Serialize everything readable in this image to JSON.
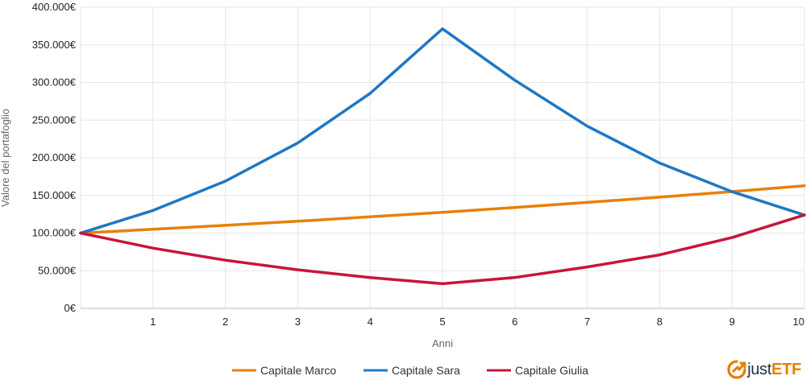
{
  "chart_data": {
    "type": "line",
    "x": [
      0,
      1,
      2,
      3,
      4,
      5,
      6,
      7,
      8,
      9,
      10
    ],
    "xticks": [
      "1",
      "2",
      "3",
      "4",
      "5",
      "6",
      "7",
      "8",
      "9",
      "10"
    ],
    "xlabel": "Anni",
    "ylabel": "Valore del portafoglio",
    "ylim": [
      0,
      400000
    ],
    "yticks": [
      "0€",
      "50.000€",
      "100.000€",
      "150.000€",
      "200.000€",
      "250.000€",
      "300.000€",
      "350.000€",
      "400.000€"
    ],
    "grid": true,
    "legend_position": "bottom-center",
    "series": [
      {
        "name": "Capitale Marco",
        "color": "#e8800c",
        "values": [
          100000,
          105000,
          110250,
          115763,
          121551,
          127628,
          134010,
          140710,
          147746,
          155133,
          162889
        ]
      },
      {
        "name": "Capitale Sara",
        "color": "#1f77c4",
        "values": [
          100000,
          130000,
          169000,
          219700,
          285610,
          371293,
          303000,
          242000,
          193000,
          155000,
          124000
        ]
      },
      {
        "name": "Capitale Giulia",
        "color": "#c8143c",
        "values": [
          100000,
          80000,
          64000,
          51200,
          40960,
          32768,
          41000,
          55000,
          71000,
          94000,
          124000
        ]
      }
    ]
  },
  "brand": {
    "part1": "just",
    "part2": "ETF"
  }
}
